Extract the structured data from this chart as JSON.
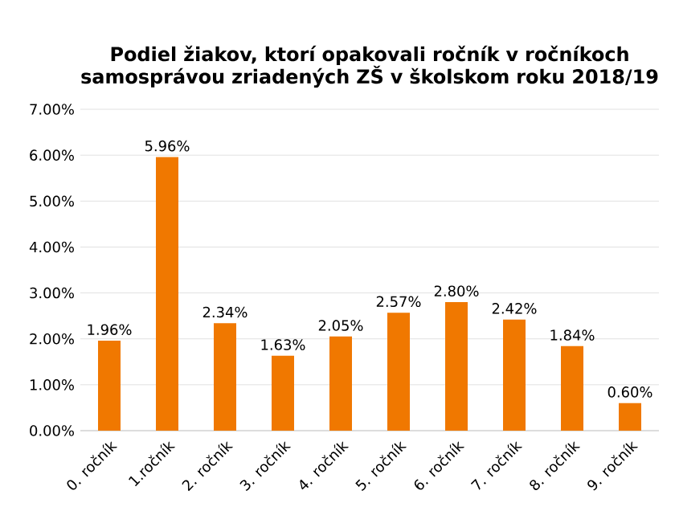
{
  "chart_data": {
    "type": "bar",
    "title": "Podiel žiakov, ktorí opakovali ročník v ročníkoch samosprávou zriadených ZŠ v školskom roku 2018/19",
    "categories": [
      "0. ročník",
      "1.ročník",
      "2. ročník",
      "3. ročník",
      "4. ročník",
      "5. ročník",
      "6. ročník",
      "7. ročník",
      "8. ročník",
      "9. ročník"
    ],
    "values": [
      1.96,
      5.96,
      2.34,
      1.63,
      2.05,
      2.57,
      2.8,
      2.42,
      1.84,
      0.6
    ],
    "value_labels": [
      "1.96%",
      "5.96%",
      "2.34%",
      "1.63%",
      "2.05%",
      "2.57%",
      "2.80%",
      "2.42%",
      "1.84%",
      "0.60%"
    ],
    "color": "#f07800",
    "ylim": [
      0,
      7
    ],
    "yticks": [
      {
        "value": 0,
        "label": "0.00%"
      },
      {
        "value": 1,
        "label": "1.00%"
      },
      {
        "value": 2,
        "label": "2.00%"
      },
      {
        "value": 3,
        "label": "3.00%"
      },
      {
        "value": 4,
        "label": "4.00%"
      },
      {
        "value": 5,
        "label": "5.00%"
      },
      {
        "value": 6,
        "label": "6.00%"
      },
      {
        "value": 7,
        "label": "7.00%"
      }
    ],
    "grid": "y"
  }
}
